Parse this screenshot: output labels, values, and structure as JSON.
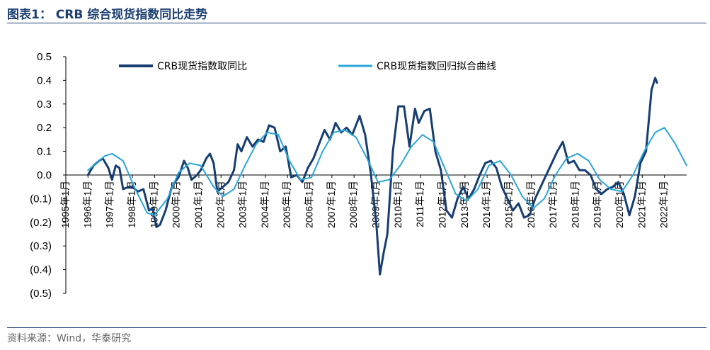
{
  "title": "图表1：  CRB 综合现货指数同比走势",
  "source": "资料来源：Wind，华泰研究",
  "colors": {
    "title": "#1c3f72",
    "series_dark": "#163e72",
    "series_light": "#2aa6d8"
  },
  "chart_data": {
    "type": "line",
    "title": "CRB 综合现货指数同比走势",
    "ylim": [
      -0.5,
      0.5
    ],
    "y_ticks": [
      "0.5",
      "0.4",
      "0.3",
      "0.2",
      "0.1",
      "0.0",
      "(0.1)",
      "(0.2)",
      "(0.3)",
      "(0.4)",
      "(0.5)"
    ],
    "x_ticks": [
      "1995年1月",
      "1996年1月",
      "1997年1月",
      "1998年1月",
      "1999年1月",
      "2000年1月",
      "2001年1月",
      "2002年1月",
      "2003年1月",
      "2004年1月",
      "2005年1月",
      "2006年1月",
      "2007年1月",
      "2008年1月",
      "2009年1月",
      "2010年1月",
      "2011年1月",
      "2012年1月",
      "2013年1月",
      "2014年1月",
      "2015年1月",
      "2016年1月",
      "2017年1月",
      "2018年1月",
      "2019年1月",
      "2020年1月",
      "2021年1月",
      "2022年1月"
    ],
    "grid": false,
    "legend_position": "top",
    "series": [
      {
        "name": "CRB现货指数取同比",
        "points": [
          [
            "1996-01",
            0.0
          ],
          [
            "1996-04",
            0.04
          ],
          [
            "1996-07",
            0.06
          ],
          [
            "1996-09",
            0.07
          ],
          [
            "1996-12",
            0.03
          ],
          [
            "1997-02",
            -0.02
          ],
          [
            "1997-04",
            0.04
          ],
          [
            "1997-06",
            0.03
          ],
          [
            "1997-08",
            -0.06
          ],
          [
            "1997-11",
            -0.05
          ],
          [
            "1998-01",
            -0.05
          ],
          [
            "1998-04",
            -0.07
          ],
          [
            "1998-07",
            -0.06
          ],
          [
            "1998-10",
            -0.15
          ],
          [
            "1998-12",
            -0.14
          ],
          [
            "1999-02",
            -0.22
          ],
          [
            "1999-04",
            -0.21
          ],
          [
            "1999-07",
            -0.15
          ],
          [
            "1999-10",
            -0.06
          ],
          [
            "1999-12",
            -0.03
          ],
          [
            "2000-02",
            -0.01
          ],
          [
            "2000-05",
            0.06
          ],
          [
            "2000-07",
            0.03
          ],
          [
            "2000-09",
            -0.02
          ],
          [
            "2000-12",
            0.0
          ],
          [
            "2001-02",
            0.02
          ],
          [
            "2001-05",
            0.07
          ],
          [
            "2001-07",
            0.09
          ],
          [
            "2001-09",
            0.05
          ],
          [
            "2001-11",
            -0.07
          ],
          [
            "2002-02",
            -0.05
          ],
          [
            "2002-05",
            -0.03
          ],
          [
            "2002-08",
            0.02
          ],
          [
            "2002-10",
            0.13
          ],
          [
            "2002-12",
            0.1
          ],
          [
            "2003-03",
            0.16
          ],
          [
            "2003-06",
            0.12
          ],
          [
            "2003-09",
            0.15
          ],
          [
            "2003-12",
            0.14
          ],
          [
            "2004-03",
            0.21
          ],
          [
            "2004-06",
            0.2
          ],
          [
            "2004-09",
            0.1
          ],
          [
            "2004-12",
            0.12
          ],
          [
            "2005-03",
            -0.01
          ],
          [
            "2005-06",
            0.0
          ],
          [
            "2005-09",
            -0.03
          ],
          [
            "2005-12",
            0.03
          ],
          [
            "2006-03",
            0.07
          ],
          [
            "2006-06",
            0.13
          ],
          [
            "2006-09",
            0.19
          ],
          [
            "2006-12",
            0.15
          ],
          [
            "2007-03",
            0.22
          ],
          [
            "2007-06",
            0.18
          ],
          [
            "2007-09",
            0.2
          ],
          [
            "2007-12",
            0.17
          ],
          [
            "2008-04",
            0.25
          ],
          [
            "2008-07",
            0.17
          ],
          [
            "2008-10",
            0.01
          ],
          [
            "2009-01",
            -0.2
          ],
          [
            "2009-03",
            -0.42
          ],
          [
            "2009-05",
            -0.33
          ],
          [
            "2009-07",
            -0.25
          ],
          [
            "2009-10",
            0.1
          ],
          [
            "2010-01",
            0.29
          ],
          [
            "2010-04",
            0.29
          ],
          [
            "2010-07",
            0.12
          ],
          [
            "2010-10",
            0.28
          ],
          [
            "2010-12",
            0.22
          ],
          [
            "2011-03",
            0.27
          ],
          [
            "2011-06",
            0.28
          ],
          [
            "2011-09",
            0.1
          ],
          [
            "2011-12",
            0.02
          ],
          [
            "2012-03",
            -0.15
          ],
          [
            "2012-06",
            -0.18
          ],
          [
            "2012-09",
            -0.1
          ],
          [
            "2012-12",
            -0.05
          ],
          [
            "2013-03",
            -0.1
          ],
          [
            "2013-06",
            -0.06
          ],
          [
            "2013-09",
            0.0
          ],
          [
            "2013-12",
            0.05
          ],
          [
            "2014-03",
            0.06
          ],
          [
            "2014-06",
            0.03
          ],
          [
            "2014-09",
            -0.05
          ],
          [
            "2014-12",
            -0.1
          ],
          [
            "2015-03",
            -0.15
          ],
          [
            "2015-06",
            -0.12
          ],
          [
            "2015-09",
            -0.18
          ],
          [
            "2015-12",
            -0.17
          ],
          [
            "2016-03",
            -0.1
          ],
          [
            "2016-06",
            -0.05
          ],
          [
            "2016-09",
            0.0
          ],
          [
            "2016-12",
            0.05
          ],
          [
            "2017-03",
            0.1
          ],
          [
            "2017-06",
            0.14
          ],
          [
            "2017-09",
            0.05
          ],
          [
            "2017-12",
            0.06
          ],
          [
            "2018-03",
            0.02
          ],
          [
            "2018-06",
            0.02
          ],
          [
            "2018-09",
            0.0
          ],
          [
            "2018-12",
            -0.06
          ],
          [
            "2019-03",
            -0.08
          ],
          [
            "2019-06",
            -0.06
          ],
          [
            "2019-09",
            -0.05
          ],
          [
            "2019-12",
            -0.03
          ],
          [
            "2020-03",
            -0.08
          ],
          [
            "2020-06",
            -0.17
          ],
          [
            "2020-09",
            -0.09
          ],
          [
            "2020-12",
            0.05
          ],
          [
            "2021-03",
            0.1
          ],
          [
            "2021-06",
            0.36
          ],
          [
            "2021-08",
            0.41
          ],
          [
            "2021-09",
            0.39
          ]
        ]
      },
      {
        "name": "CRB现货指数回归拟合曲线",
        "points": [
          [
            "1996-01",
            0.02
          ],
          [
            "1996-10",
            0.08
          ],
          [
            "1997-02",
            0.09
          ],
          [
            "1997-08",
            0.06
          ],
          [
            "1998-02",
            -0.05
          ],
          [
            "1998-09",
            -0.16
          ],
          [
            "1999-01",
            -0.17
          ],
          [
            "1999-08",
            -0.1
          ],
          [
            "2000-02",
            0.01
          ],
          [
            "2000-08",
            0.05
          ],
          [
            "2001-02",
            0.04
          ],
          [
            "2001-09",
            -0.05
          ],
          [
            "2002-02",
            -0.09
          ],
          [
            "2002-08",
            -0.06
          ],
          [
            "2003-02",
            0.04
          ],
          [
            "2003-08",
            0.13
          ],
          [
            "2004-02",
            0.18
          ],
          [
            "2004-08",
            0.17
          ],
          [
            "2005-02",
            0.06
          ],
          [
            "2005-08",
            -0.02
          ],
          [
            "2006-02",
            -0.01
          ],
          [
            "2006-08",
            0.1
          ],
          [
            "2007-02",
            0.18
          ],
          [
            "2007-08",
            0.19
          ],
          [
            "2008-02",
            0.16
          ],
          [
            "2008-08",
            0.07
          ],
          [
            "2009-02",
            -0.03
          ],
          [
            "2009-08",
            -0.02
          ],
          [
            "2010-02",
            0.04
          ],
          [
            "2010-08",
            0.12
          ],
          [
            "2011-02",
            0.17
          ],
          [
            "2011-08",
            0.14
          ],
          [
            "2012-02",
            0.03
          ],
          [
            "2012-08",
            -0.08
          ],
          [
            "2013-02",
            -0.11
          ],
          [
            "2013-08",
            -0.06
          ],
          [
            "2014-02",
            0.04
          ],
          [
            "2014-08",
            0.06
          ],
          [
            "2015-02",
            0.0
          ],
          [
            "2015-08",
            -0.09
          ],
          [
            "2016-02",
            -0.14
          ],
          [
            "2016-08",
            -0.1
          ],
          [
            "2017-02",
            0.0
          ],
          [
            "2017-08",
            0.07
          ],
          [
            "2018-02",
            0.09
          ],
          [
            "2018-08",
            0.06
          ],
          [
            "2019-02",
            -0.02
          ],
          [
            "2019-08",
            -0.06
          ],
          [
            "2020-02",
            -0.07
          ],
          [
            "2020-08",
            0.0
          ],
          [
            "2021-02",
            0.1
          ],
          [
            "2021-08",
            0.18
          ],
          [
            "2022-01",
            0.2
          ],
          [
            "2022-07",
            0.13
          ],
          [
            "2023-01",
            0.04
          ]
        ]
      }
    ]
  }
}
